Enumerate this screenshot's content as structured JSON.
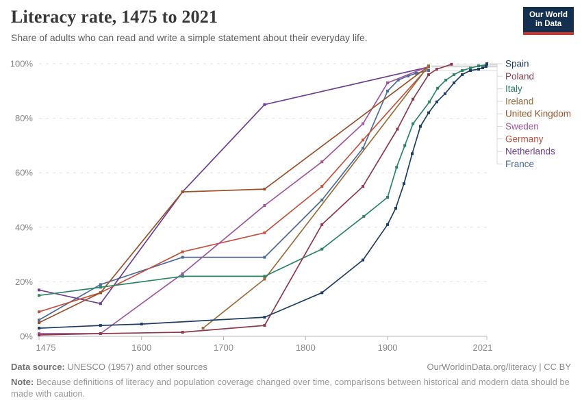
{
  "header": {
    "title": "Literacy rate, 1475 to 2021",
    "subtitle": "Share of adults who can read and write a simple statement about their everyday life.",
    "logo": {
      "line1": "Our World",
      "line2": "in Data",
      "bg": "#15304F",
      "accent": "#D0342C"
    }
  },
  "footer": {
    "source_label": "Data source:",
    "source_text": " UNESCO (1957) and other sources",
    "link_text": "OurWorldinData.org/literacy | CC BY",
    "note_label": "Note:",
    "note_text": " Because definitions of literacy and population coverage changed over time, comparisons between historical and modern data should be made with caution."
  },
  "chart_data": {
    "type": "line",
    "title": "Literacy rate, 1475 to 2021",
    "xlabel": "",
    "ylabel": "",
    "xlim": [
      1475,
      2021
    ],
    "ylim": [
      0,
      100
    ],
    "grid": "horizontal-dashed",
    "legend_position": "right",
    "x_ticks": [
      1475,
      1600,
      1700,
      1800,
      1900,
      2021
    ],
    "x_tick_labels": [
      "1475",
      "1600",
      "1700",
      "1800",
      "1900",
      "2021"
    ],
    "y_ticks": [
      0,
      20,
      40,
      60,
      80,
      100
    ],
    "y_tick_labels": [
      "0%",
      "20%",
      "40%",
      "60%",
      "80%",
      "100%"
    ],
    "series": [
      {
        "name": "Spain",
        "color": "#1D3D63",
        "points": [
          [
            1475,
            3
          ],
          [
            1550,
            4
          ],
          [
            1600,
            4.5
          ],
          [
            1750,
            7
          ],
          [
            1820,
            16
          ],
          [
            1870,
            28
          ],
          [
            1900,
            41
          ],
          [
            1910,
            47
          ],
          [
            1920,
            56
          ],
          [
            1930,
            67
          ],
          [
            1940,
            77
          ],
          [
            1950,
            82
          ],
          [
            1960,
            86
          ],
          [
            1970,
            89
          ],
          [
            1981,
            93
          ],
          [
            1991,
            96
          ],
          [
            2001,
            97.5
          ],
          [
            2011,
            98
          ],
          [
            2016,
            98.5
          ],
          [
            2020,
            99
          ],
          [
            2021,
            100
          ]
        ]
      },
      {
        "name": "Poland",
        "color": "#8C3A4C",
        "points": [
          [
            1475,
            0.5
          ],
          [
            1550,
            1
          ],
          [
            1650,
            1.5
          ],
          [
            1750,
            4
          ],
          [
            1820,
            41
          ],
          [
            1870,
            55
          ],
          [
            1912,
            76
          ],
          [
            1931,
            87
          ],
          [
            1950,
            96
          ],
          [
            1960,
            98
          ],
          [
            1978,
            99.8
          ]
        ]
      },
      {
        "name": "Italy",
        "color": "#2C8465",
        "points": [
          [
            1475,
            15
          ],
          [
            1550,
            18
          ],
          [
            1650,
            22
          ],
          [
            1750,
            22
          ],
          [
            1820,
            32
          ],
          [
            1871,
            44
          ],
          [
            1900,
            51
          ],
          [
            1911,
            62
          ],
          [
            1921,
            70
          ],
          [
            1931,
            78
          ],
          [
            1951,
            86
          ],
          [
            1961,
            91
          ],
          [
            1971,
            94
          ],
          [
            1981,
            96
          ],
          [
            1991,
            97.5
          ],
          [
            2001,
            98.4
          ],
          [
            2011,
            99.2
          ],
          [
            2021,
            99.6
          ]
        ]
      },
      {
        "name": "Ireland",
        "color": "#996D39",
        "points": [
          [
            1675,
            3
          ],
          [
            1750,
            21
          ],
          [
            1950,
            99.2
          ]
        ]
      },
      {
        "name": "United Kingdom",
        "color": "#9A5129",
        "points": [
          [
            1475,
            5
          ],
          [
            1550,
            16
          ],
          [
            1650,
            53
          ],
          [
            1750,
            54
          ],
          [
            1950,
            99.1
          ]
        ]
      },
      {
        "name": "Sweden",
        "color": "#A2559C",
        "points": [
          [
            1475,
            1
          ],
          [
            1550,
            1
          ],
          [
            1650,
            23
          ],
          [
            1750,
            48
          ],
          [
            1820,
            64
          ],
          [
            1870,
            78
          ],
          [
            1900,
            93
          ],
          [
            1950,
            99
          ]
        ]
      },
      {
        "name": "Germany",
        "color": "#C4523E",
        "points": [
          [
            1475,
            9
          ],
          [
            1550,
            16
          ],
          [
            1650,
            31
          ],
          [
            1750,
            38
          ],
          [
            1820,
            55
          ],
          [
            1870,
            72
          ],
          [
            1950,
            98.9
          ]
        ]
      },
      {
        "name": "Netherlands",
        "color": "#6D3E91",
        "points": [
          [
            1475,
            17
          ],
          [
            1550,
            12
          ],
          [
            1650,
            53
          ],
          [
            1750,
            85
          ],
          [
            1950,
            98.8
          ]
        ]
      },
      {
        "name": "France",
        "color": "#4C6A9C",
        "points": [
          [
            1475,
            6
          ],
          [
            1550,
            19
          ],
          [
            1650,
            29
          ],
          [
            1750,
            29
          ],
          [
            1820,
            50
          ],
          [
            1870,
            69
          ],
          [
            1900,
            90
          ],
          [
            1913,
            94
          ],
          [
            1925,
            95.5
          ],
          [
            1935,
            96.5
          ],
          [
            1950,
            97.5
          ]
        ]
      }
    ]
  }
}
